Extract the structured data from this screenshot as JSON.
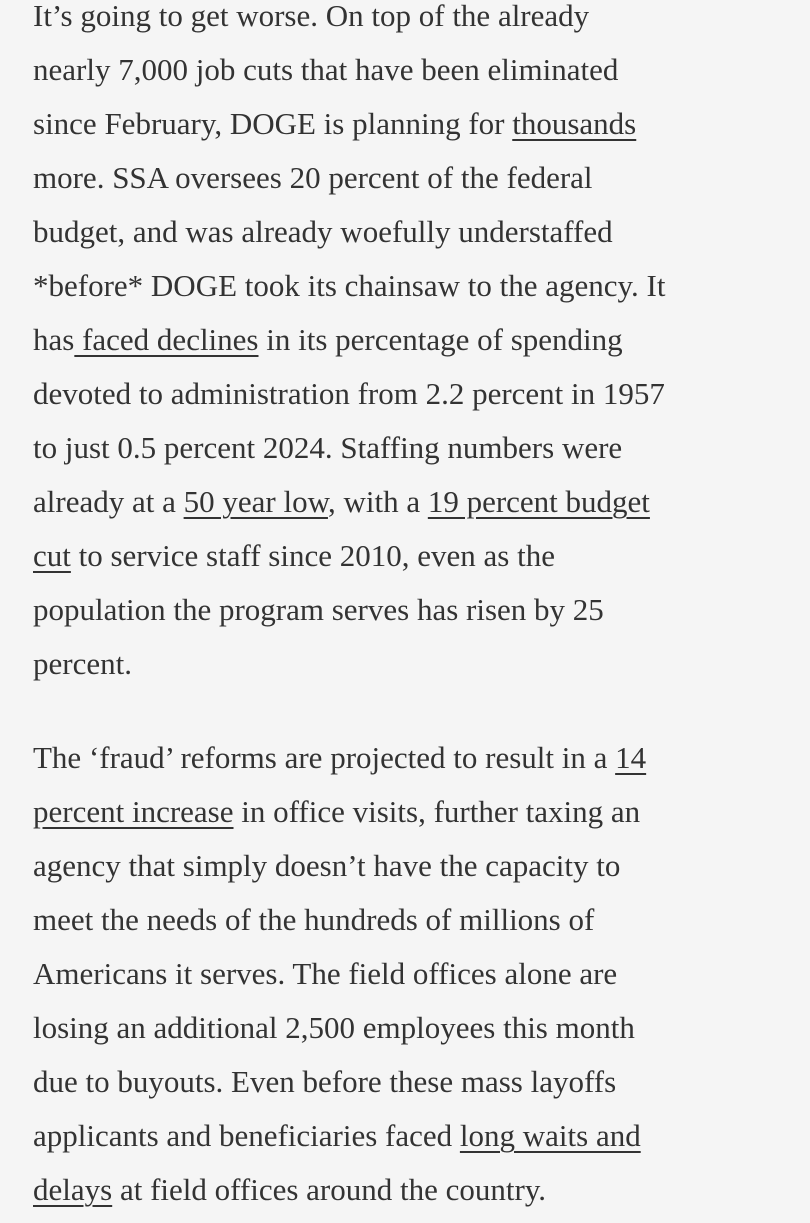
{
  "page": {
    "background_color": "#f5f5f5",
    "text_color": "#333333"
  },
  "article": {
    "paragraphs": [
      {
        "lines": [
          [
            {
              "t": "It’s going to get worse. On top of the already"
            }
          ],
          [
            {
              "t": "nearly 7,000 job cuts that have been eliminated"
            }
          ],
          [
            {
              "t": "since February, DOGE is planning for "
            },
            {
              "t": "thousands",
              "link": true
            }
          ],
          [
            {
              "t": "more. SSA oversees 20 percent of the federal"
            }
          ],
          [
            {
              "t": "budget, and was already woefully understaffed"
            }
          ],
          [
            {
              "t": "*before* DOGE took its chainsaw to the agency. It"
            }
          ],
          [
            {
              "t": "has"
            },
            {
              "t": " faced declines",
              "link": true
            },
            {
              "t": " in its percentage of spending"
            }
          ],
          [
            {
              "t": "devoted to administration from 2.2 percent in 1957"
            }
          ],
          [
            {
              "t": "to just 0.5 percent 2024. Staffing numbers were"
            }
          ],
          [
            {
              "t": "already at a "
            },
            {
              "t": "50 year low",
              "link": true
            },
            {
              "t": ", with a "
            },
            {
              "t": "19 percent budget",
              "link": true
            }
          ],
          [
            {
              "t": "cut",
              "link": true
            },
            {
              "t": " to service staff since 2010, even as the"
            }
          ],
          [
            {
              "t": "population the program serves has risen by 25"
            }
          ],
          [
            {
              "t": "percent."
            }
          ]
        ]
      },
      {
        "lines": [
          [
            {
              "t": "The ‘fraud’ reforms are projected to result in a "
            },
            {
              "t": "14",
              "link": true
            }
          ],
          [
            {
              "t": "percent increase",
              "link": true
            },
            {
              "t": " in office visits, further taxing an"
            }
          ],
          [
            {
              "t": "agency that simply doesn’t have the capacity to"
            }
          ],
          [
            {
              "t": "meet the needs of the hundreds of millions of"
            }
          ],
          [
            {
              "t": "Americans it serves. The field offices alone are"
            }
          ],
          [
            {
              "t": "losing an additional 2,500 employees this month"
            }
          ],
          [
            {
              "t": "due to buyouts. Even before these mass layoffs"
            }
          ],
          [
            {
              "t": "applicants and beneficiaries faced "
            },
            {
              "t": "long waits and",
              "link": true
            }
          ],
          [
            {
              "t": "delays",
              "link": true
            },
            {
              "t": " at field offices around the country."
            }
          ]
        ]
      }
    ]
  }
}
